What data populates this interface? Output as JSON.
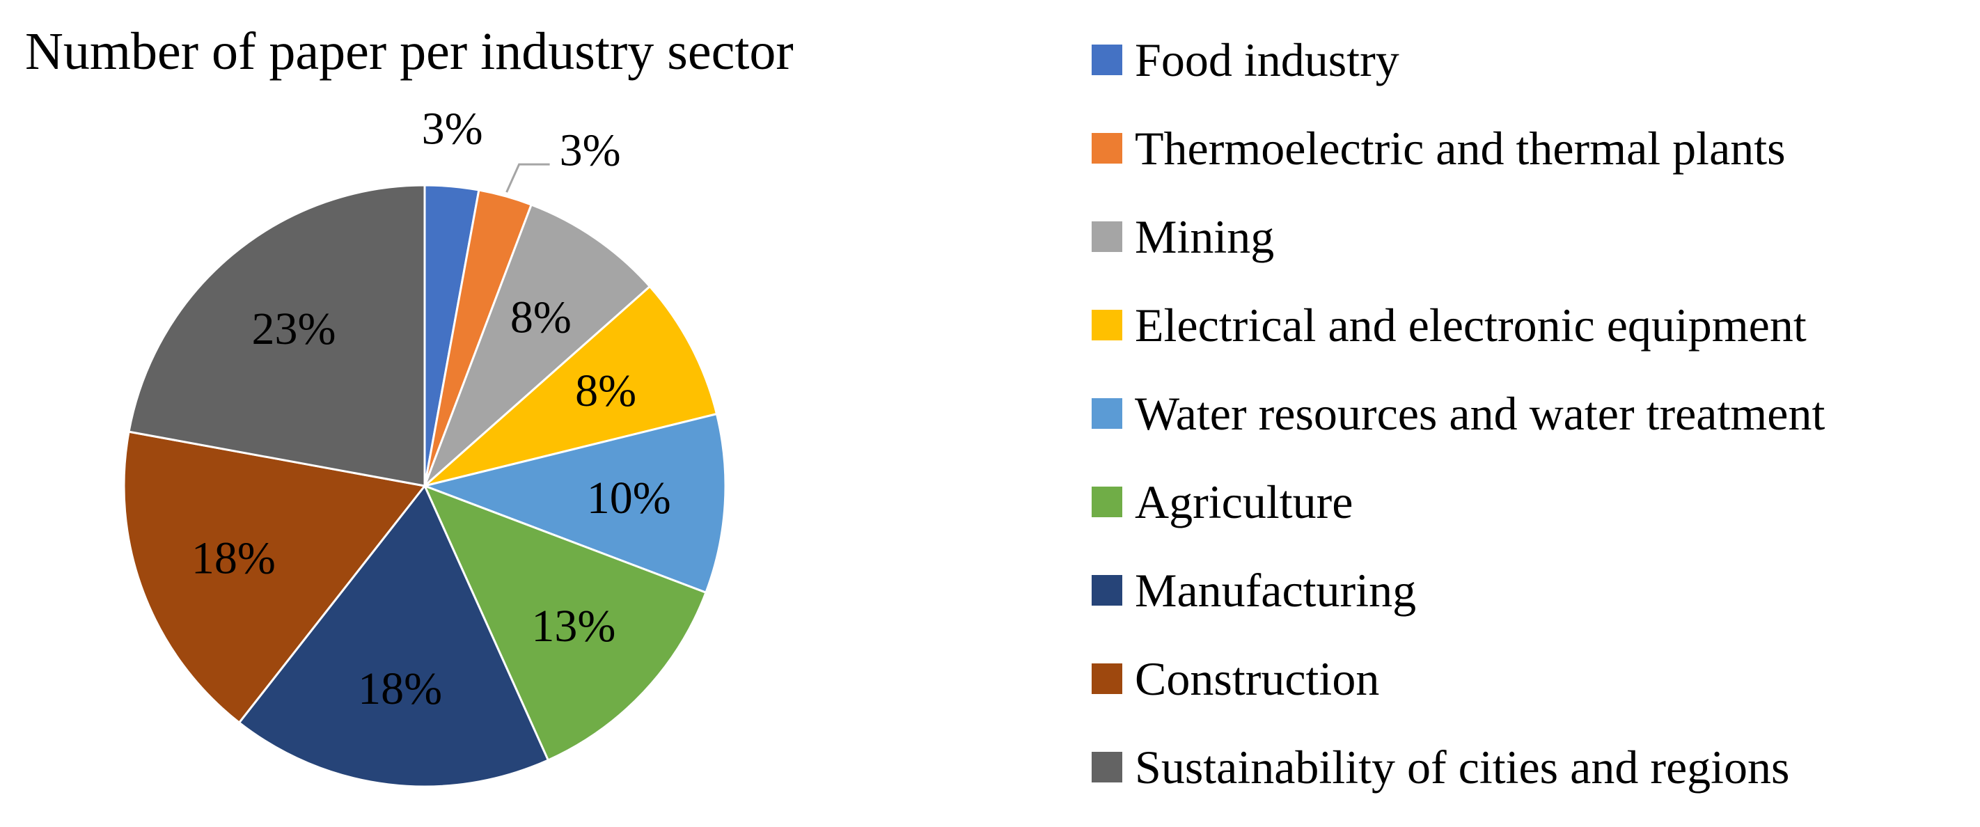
{
  "chart_data": {
    "type": "pie",
    "title": "Number of paper per industry sector",
    "legend_position": "right",
    "slices": [
      {
        "name": "Food industry",
        "value": 3,
        "label": "3%",
        "color": "#4472C4"
      },
      {
        "name": "Thermoelectric and thermal plants",
        "value": 3,
        "label": "3%",
        "color": "#ED7D31"
      },
      {
        "name": "Mining",
        "value": 8,
        "label": "8%",
        "color": "#A5A5A5"
      },
      {
        "name": "Electrical and electronic equipment",
        "value": 8,
        "label": "8%",
        "color": "#FFC000"
      },
      {
        "name": "Water resources and water treatment",
        "value": 10,
        "label": "10%",
        "color": "#5B9BD5"
      },
      {
        "name": "Agriculture",
        "value": 13,
        "label": "13%",
        "color": "#70AD47"
      },
      {
        "name": "Manufacturing",
        "value": 18,
        "label": "18%",
        "color": "#264478"
      },
      {
        "name": "Construction",
        "value": 18,
        "label": "18%",
        "color": "#9E480E"
      },
      {
        "name": "Sustainability of cities and regions",
        "value": 23,
        "label": "23%",
        "color": "#636363"
      }
    ]
  }
}
